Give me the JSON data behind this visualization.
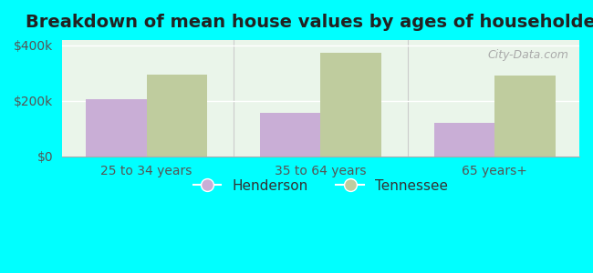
{
  "title": "Breakdown of mean house values by ages of householders",
  "categories": [
    "25 to 34 years",
    "35 to 64 years",
    "65 years+"
  ],
  "henderson_values": [
    205000,
    155000,
    120000
  ],
  "tennessee_values": [
    295000,
    375000,
    290000
  ],
  "ylim": [
    0,
    420000
  ],
  "ytick_labels": [
    "$0",
    "$200k",
    "$400k"
  ],
  "ytick_vals": [
    0,
    200000,
    400000
  ],
  "henderson_color": "#c9aed6",
  "tennessee_color": "#bfcc9e",
  "background_color": "#00ffff",
  "plot_bg_color": "#eaf5ea",
  "bar_width": 0.35,
  "legend_henderson": "Henderson",
  "legend_tennessee": "Tennessee",
  "title_fontsize": 14,
  "tick_fontsize": 10,
  "legend_fontsize": 11,
  "watermark": "City-Data.com"
}
